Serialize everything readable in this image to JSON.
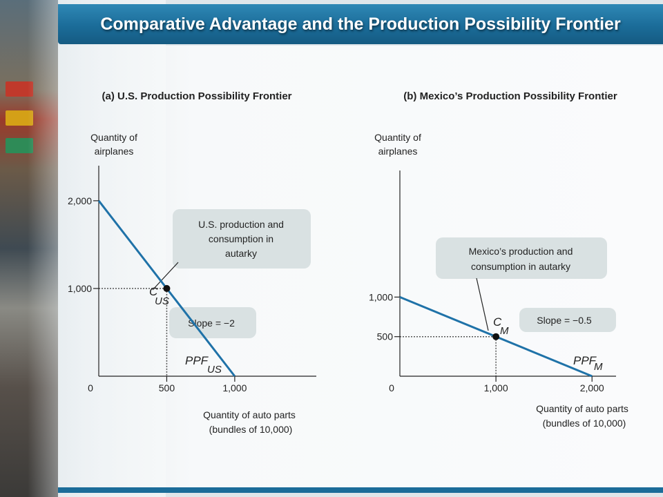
{
  "title": "Comparative Advantage and the Production Possibility Frontier",
  "colors": {
    "frontier": "#1f72a8",
    "axis": "#222222",
    "callout_fill": "#d9e1e2",
    "title_bar": "#1b6c99"
  },
  "chart_data": [
    {
      "type": "line",
      "title": "(a) U.S. Production Possibility Frontier",
      "ylabel": [
        "Quantity of",
        "airplanes"
      ],
      "xlabel": [
        "Quantity of auto parts",
        "(bundles of 10,000)"
      ],
      "xlim": [
        0,
        1600
      ],
      "ylim": [
        0,
        2400
      ],
      "x_ticks": [
        {
          "v": 0,
          "label": "0"
        },
        {
          "v": 500,
          "label": "500"
        },
        {
          "v": 1000,
          "label": "1,000"
        }
      ],
      "y_ticks": [
        {
          "v": 1000,
          "label": "1,000"
        },
        {
          "v": 2000,
          "label": "2,000"
        }
      ],
      "series": [
        {
          "name": "PPF",
          "sub": "US",
          "x": [
            0,
            1000
          ],
          "y": [
            2000,
            0
          ]
        }
      ],
      "point": {
        "label": "C",
        "sub": "US",
        "x": 500,
        "y": 1000
      },
      "callouts": [
        {
          "id": "autarky",
          "lines": [
            "U.S. production and",
            "consumption in",
            "autarky"
          ]
        },
        {
          "id": "slope",
          "lines": [
            "Slope = −2"
          ]
        }
      ]
    },
    {
      "type": "line",
      "title": "(b) Mexico’s Production Possibility Frontier",
      "ylabel": [
        "Quantity of",
        "airplanes"
      ],
      "xlabel": [
        "Quantity of auto parts",
        "(bundles of 10,000)"
      ],
      "xlim": [
        0,
        2250
      ],
      "ylim": [
        0,
        2600
      ],
      "x_ticks": [
        {
          "v": 0,
          "label": "0"
        },
        {
          "v": 1000,
          "label": "1,000"
        },
        {
          "v": 2000,
          "label": "2,000"
        }
      ],
      "y_ticks": [
        {
          "v": 500,
          "label": "500"
        },
        {
          "v": 1000,
          "label": "1,000"
        }
      ],
      "series": [
        {
          "name": "PPF",
          "sub": "M",
          "x": [
            0,
            2000
          ],
          "y": [
            1000,
            0
          ]
        }
      ],
      "point": {
        "label": "C",
        "sub": "M",
        "x": 1000,
        "y": 500
      },
      "callouts": [
        {
          "id": "autarky",
          "lines": [
            "Mexico’s production and",
            "consumption in autarky"
          ]
        },
        {
          "id": "slope",
          "lines": [
            "Slope = −0.5"
          ]
        }
      ]
    }
  ]
}
